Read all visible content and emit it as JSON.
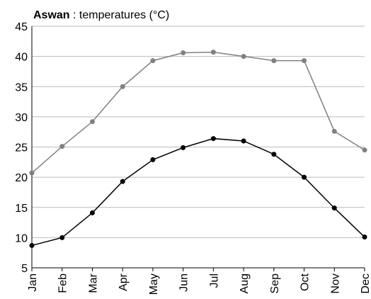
{
  "chart_data": {
    "type": "line",
    "title": {
      "place": "Aswan",
      "text": " : temperatures (°C)"
    },
    "categories": [
      "Jan",
      "Feb",
      "Mar",
      "Apr",
      "May",
      "Jun",
      "Jul",
      "Aug",
      "Sep",
      "Oct",
      "Nov",
      "Dec"
    ],
    "series": [
      {
        "color": "#808080",
        "values": [
          20.7,
          25.1,
          29.2,
          35.0,
          39.3,
          40.6,
          40.7,
          40.0,
          39.3,
          39.3,
          27.6,
          24.5
        ]
      },
      {
        "color": "#000000",
        "values": [
          8.7,
          10.0,
          14.1,
          19.3,
          22.9,
          24.9,
          26.4,
          26.0,
          23.8,
          20.0,
          14.9,
          10.1
        ]
      }
    ],
    "ylim": [
      5,
      45
    ],
    "yticks": [
      5,
      10,
      15,
      20,
      25,
      30,
      35,
      40,
      45
    ],
    "grid": true
  }
}
